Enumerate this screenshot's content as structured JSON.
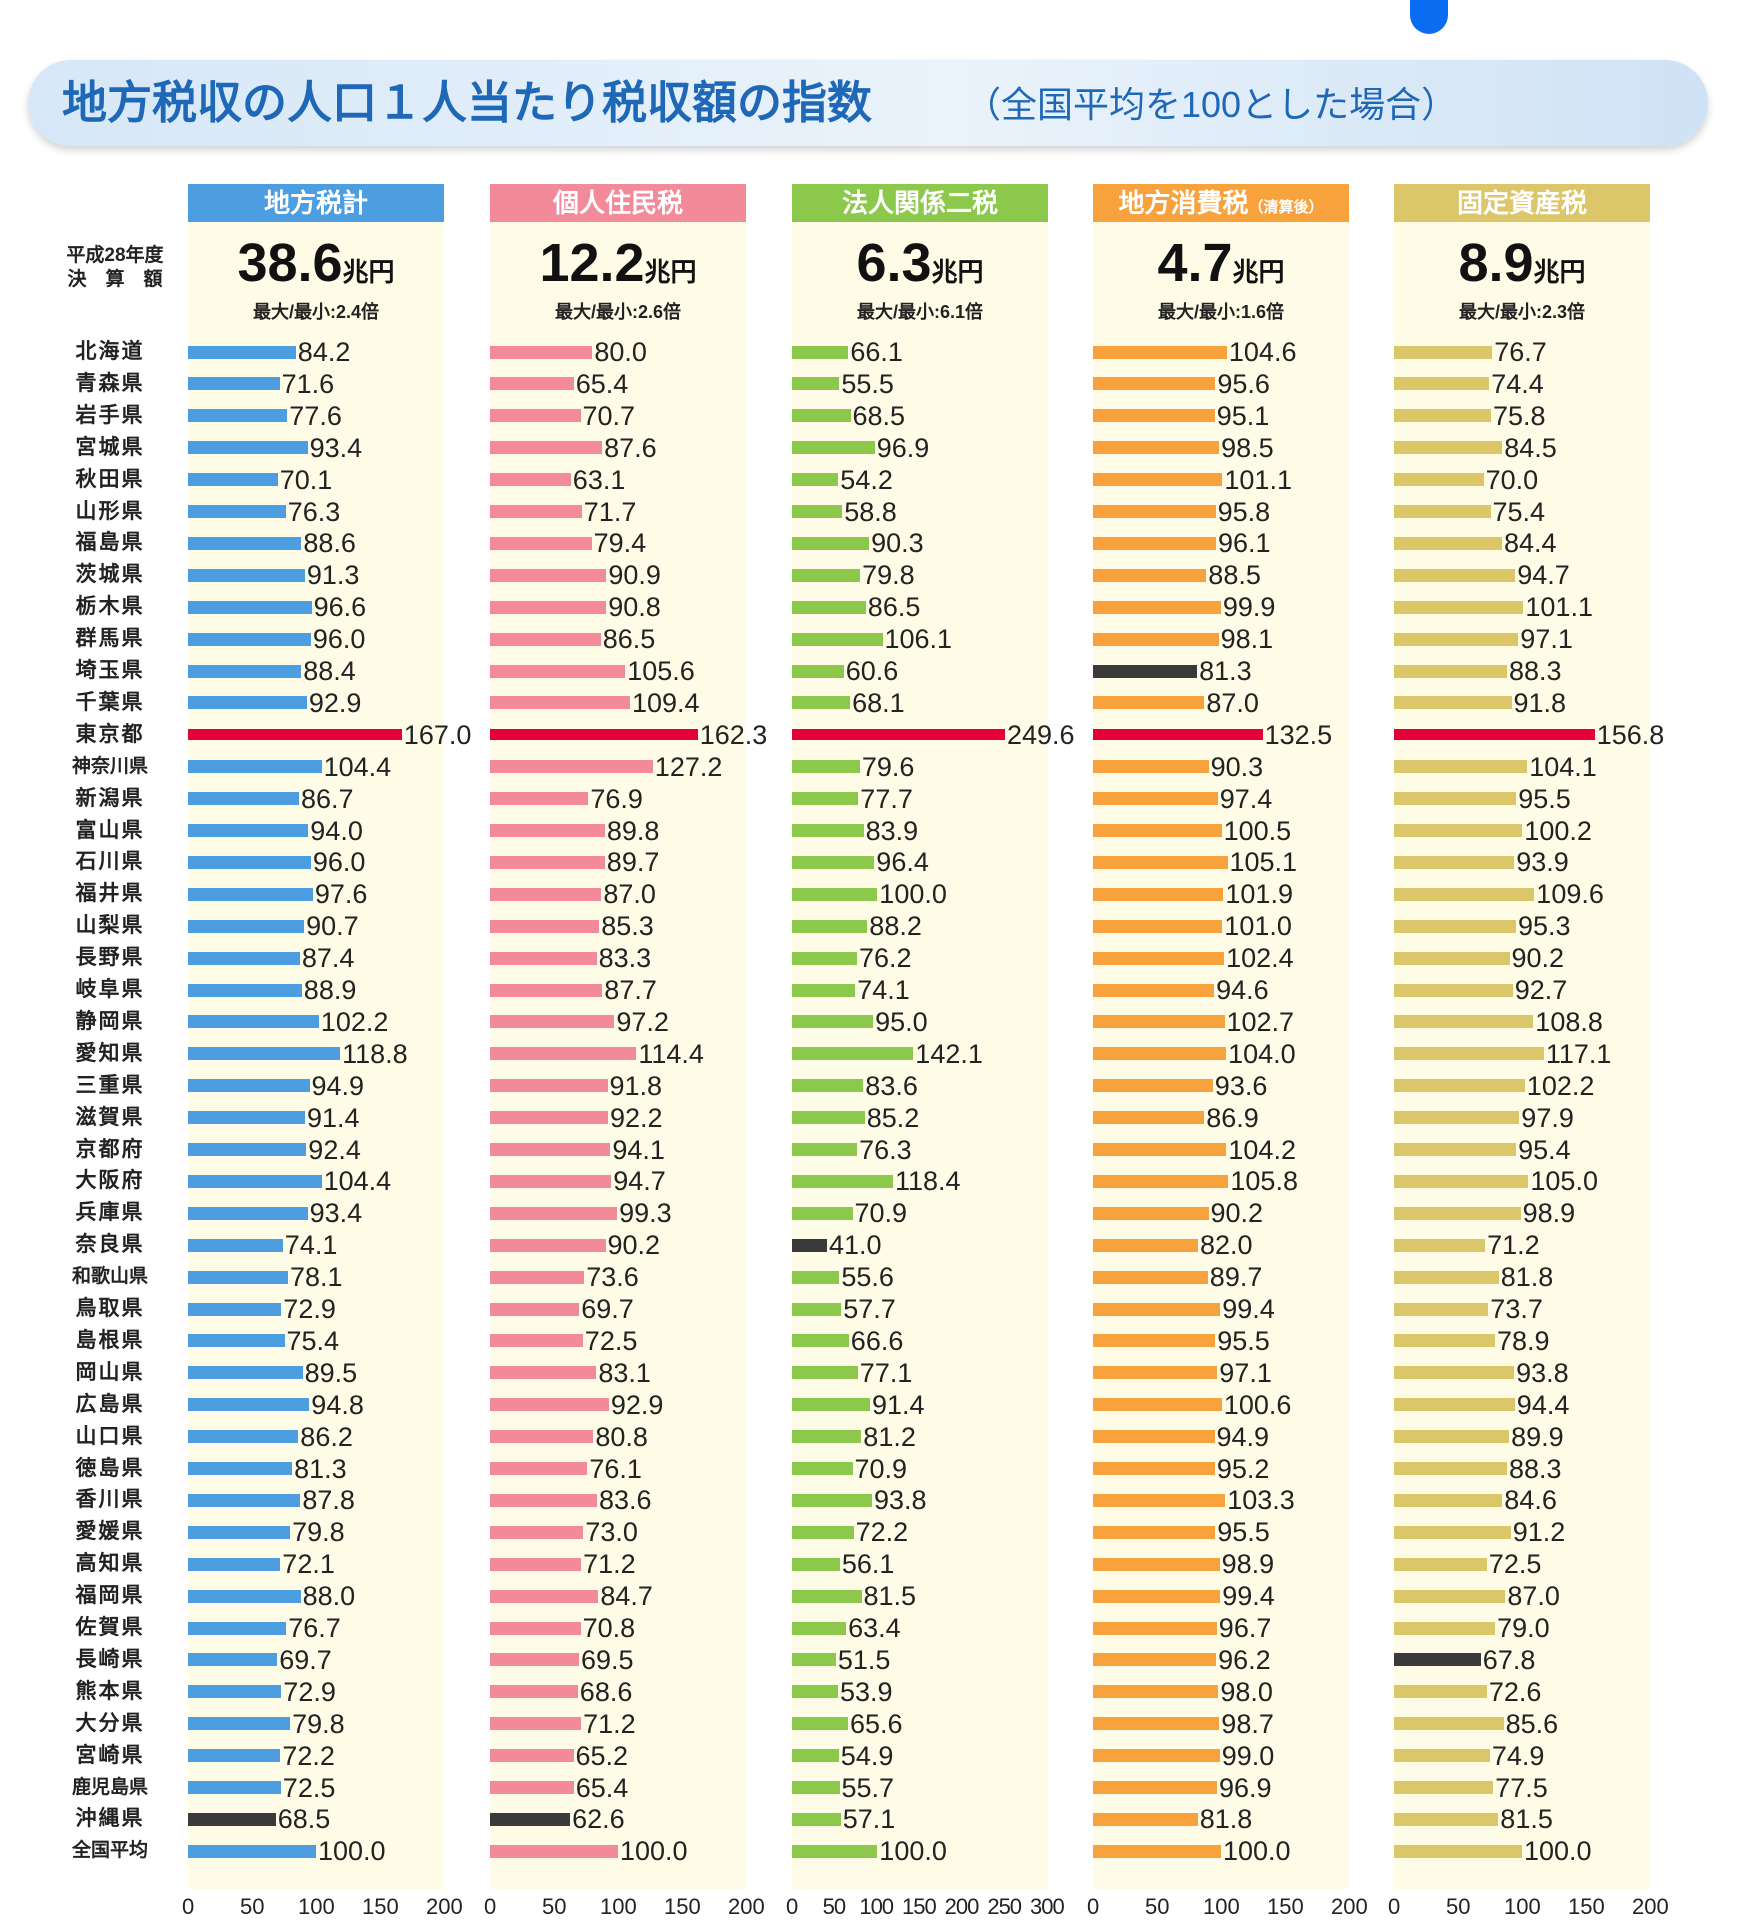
{
  "title": {
    "main": "地方税収の人口１人当たり税収額の指数",
    "sub": "（全国平均を100とした場合）"
  },
  "row_header": {
    "line1": "平成28年度",
    "line2": "決　算　額"
  },
  "colors": {
    "title_text": "#1f67b7",
    "highlight_max": "#e4003a",
    "highlight_min": "#3a3a3a",
    "panel_background": "#fefbe6"
  },
  "chart_data": {
    "type": "bar",
    "orientation": "horizontal",
    "title": "地方税収の人口１人当たり税収額の指数（全国平均を100とした場合）",
    "categories": [
      "北海道",
      "青森県",
      "岩手県",
      "宮城県",
      "秋田県",
      "山形県",
      "福島県",
      "茨城県",
      "栃木県",
      "群馬県",
      "埼玉県",
      "千葉県",
      "東京都",
      "神奈川県",
      "新潟県",
      "富山県",
      "石川県",
      "福井県",
      "山梨県",
      "長野県",
      "岐阜県",
      "静岡県",
      "愛知県",
      "三重県",
      "滋賀県",
      "京都府",
      "大阪府",
      "兵庫県",
      "奈良県",
      "和歌山県",
      "鳥取県",
      "島根県",
      "岡山県",
      "広島県",
      "山口県",
      "徳島県",
      "香川県",
      "愛媛県",
      "高知県",
      "福岡県",
      "佐賀県",
      "長崎県",
      "熊本県",
      "大分県",
      "宮崎県",
      "鹿児島県",
      "沖縄県",
      "全国平均"
    ],
    "series": [
      {
        "name": "地方税計",
        "color": "#4c9ee0",
        "total": "38.6",
        "unit": "兆円",
        "ratio_label": "最大/最小:2.4倍",
        "xlim": [
          0,
          200
        ],
        "ticks": [
          "0",
          "50",
          "100",
          "150",
          "200"
        ],
        "max_index": 12,
        "min_index": 46,
        "values": [
          84.2,
          71.6,
          77.6,
          93.4,
          70.1,
          76.3,
          88.6,
          91.3,
          96.6,
          96.0,
          88.4,
          92.9,
          167.0,
          104.4,
          86.7,
          94.0,
          96.0,
          97.6,
          90.7,
          87.4,
          88.9,
          102.2,
          118.8,
          94.9,
          91.4,
          92.4,
          104.4,
          93.4,
          74.1,
          78.1,
          72.9,
          75.4,
          89.5,
          94.8,
          86.2,
          81.3,
          87.8,
          79.8,
          72.1,
          88.0,
          76.7,
          69.7,
          72.9,
          79.8,
          72.2,
          72.5,
          68.5,
          100.0
        ]
      },
      {
        "name": "個人住民税",
        "color": "#f28a9a",
        "total": "12.2",
        "unit": "兆円",
        "ratio_label": "最大/最小:2.6倍",
        "xlim": [
          0,
          200
        ],
        "ticks": [
          "0",
          "50",
          "100",
          "150",
          "200"
        ],
        "max_index": 12,
        "min_index": 46,
        "values": [
          80.0,
          65.4,
          70.7,
          87.6,
          63.1,
          71.7,
          79.4,
          90.9,
          90.8,
          86.5,
          105.6,
          109.4,
          162.3,
          127.2,
          76.9,
          89.8,
          89.7,
          87.0,
          85.3,
          83.3,
          87.7,
          97.2,
          114.4,
          91.8,
          92.2,
          94.1,
          94.7,
          99.3,
          90.2,
          73.6,
          69.7,
          72.5,
          83.1,
          92.9,
          80.8,
          76.1,
          83.6,
          73.0,
          71.2,
          84.7,
          70.8,
          69.5,
          68.6,
          71.2,
          65.2,
          65.4,
          62.6,
          100.0
        ]
      },
      {
        "name": "法人関係二税",
        "color": "#8cc84b",
        "total": "6.3",
        "unit": "兆円",
        "ratio_label": "最大/最小:6.1倍",
        "xlim": [
          0,
          300
        ],
        "ticks": [
          "0",
          "50",
          "100",
          "150",
          "200",
          "250",
          "300"
        ],
        "max_index": 12,
        "min_index": 28,
        "values": [
          66.1,
          55.5,
          68.5,
          96.9,
          54.2,
          58.8,
          90.3,
          79.8,
          86.5,
          106.1,
          60.6,
          68.1,
          249.6,
          79.6,
          77.7,
          83.9,
          96.4,
          100.0,
          88.2,
          76.2,
          74.1,
          95.0,
          142.1,
          83.6,
          85.2,
          76.3,
          118.4,
          70.9,
          41.0,
          55.6,
          57.7,
          66.6,
          77.1,
          91.4,
          81.2,
          70.9,
          93.8,
          72.2,
          56.1,
          81.5,
          63.4,
          51.5,
          53.9,
          65.6,
          54.9,
          55.7,
          57.1,
          100.0
        ]
      },
      {
        "name": "地方消費税",
        "name_note": "（清算後）",
        "color": "#f8a23e",
        "total": "4.7",
        "unit": "兆円",
        "ratio_label": "最大/最小:1.6倍",
        "xlim": [
          0,
          200
        ],
        "ticks": [
          "0",
          "50",
          "100",
          "150",
          "200"
        ],
        "max_index": 12,
        "min_index": 10,
        "values": [
          104.6,
          95.6,
          95.1,
          98.5,
          101.1,
          95.8,
          96.1,
          88.5,
          99.9,
          98.1,
          81.3,
          87.0,
          132.5,
          90.3,
          97.4,
          100.5,
          105.1,
          101.9,
          101.0,
          102.4,
          94.6,
          102.7,
          104.0,
          93.6,
          86.9,
          104.2,
          105.8,
          90.2,
          82.0,
          89.7,
          99.4,
          95.5,
          97.1,
          100.6,
          94.9,
          95.2,
          103.3,
          95.5,
          98.9,
          99.4,
          96.7,
          96.2,
          98.0,
          98.7,
          99.0,
          96.9,
          81.8,
          100.0
        ]
      },
      {
        "name": "固定資産税",
        "color": "#dcc66a",
        "total": "8.9",
        "unit": "兆円",
        "ratio_label": "最大/最小:2.3倍",
        "xlim": [
          0,
          200
        ],
        "ticks": [
          "0",
          "50",
          "100",
          "150",
          "200"
        ],
        "max_index": 12,
        "min_index": 41,
        "values": [
          76.7,
          74.4,
          75.8,
          84.5,
          70.0,
          75.4,
          84.4,
          94.7,
          101.1,
          97.1,
          88.3,
          91.8,
          156.8,
          104.1,
          95.5,
          100.2,
          93.9,
          109.6,
          95.3,
          90.2,
          92.7,
          108.8,
          117.1,
          102.2,
          97.9,
          95.4,
          105.0,
          98.9,
          71.2,
          81.8,
          73.7,
          78.9,
          93.8,
          94.4,
          89.9,
          88.3,
          84.6,
          91.2,
          72.5,
          87.0,
          79.0,
          67.8,
          72.6,
          85.6,
          74.9,
          77.5,
          81.5,
          100.0
        ]
      }
    ]
  }
}
